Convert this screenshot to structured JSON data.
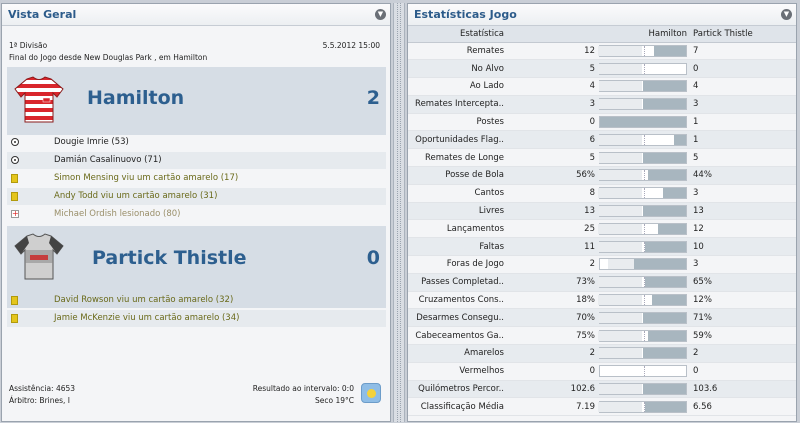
{
  "left_panel": {
    "title": "Vista Geral",
    "competition": "1ª Divisão",
    "date_time": "5.5.2012 15:00",
    "venue_line": "Final do Jogo desde New Douglas Park , em Hamilton",
    "home": {
      "name": "Hamilton",
      "score": "2",
      "kit_colors": [
        "#d9262c",
        "#ffffff"
      ]
    },
    "home_events": [
      {
        "icon": "goal-ball-icon",
        "kind": "goal",
        "text": "Dougie Imrie (53)"
      },
      {
        "icon": "goal-ball-icon",
        "kind": "goal",
        "text": "Damián Casalinuovo (71)"
      },
      {
        "icon": "yellow-card-icon",
        "kind": "card",
        "text": "Simon Mensing viu um cartão amarelo (17)"
      },
      {
        "icon": "yellow-card-icon",
        "kind": "card",
        "text": "Andy Todd viu um cartão amarelo (31)"
      },
      {
        "icon": "injury-cross-icon",
        "kind": "injury",
        "text": "Michael Ordish lesionado (80)"
      }
    ],
    "away": {
      "name": "Partick Thistle",
      "score": "0",
      "kit_colors": [
        "#c8c8c8",
        "#444444"
      ]
    },
    "away_events": [
      {
        "icon": "yellow-card-icon",
        "kind": "card",
        "text": "David Rowson viu um cartão amarelo (32)"
      },
      {
        "icon": "yellow-card-icon",
        "kind": "card",
        "text": "Jamie McKenzie viu um cartão amarelo (34)"
      }
    ],
    "attendance": "Assistência: 4653",
    "referee": "Árbitro: Brines, I",
    "halftime": "Resultado ao intervalo: 0:0",
    "weather": "Seco 19°C",
    "weather_icon": "sunny-weather-icon"
  },
  "right_panel": {
    "title": "Estatísticas Jogo",
    "col_stat": "Estatística",
    "col_home": "Hamilton",
    "col_away": "Partick Thistle",
    "rows": [
      {
        "label": "Remates",
        "home": "12",
        "away": "7",
        "hv": 12,
        "av": 7
      },
      {
        "label": "No Alvo",
        "home": "5",
        "away": "0",
        "hv": 5,
        "av": 0
      },
      {
        "label": "Ao Lado",
        "home": "4",
        "away": "4",
        "hv": 4,
        "av": 4
      },
      {
        "label": "Remates Intercepta..",
        "home": "3",
        "away": "3",
        "hv": 3,
        "av": 3
      },
      {
        "label": "Postes",
        "home": "0",
        "away": "1",
        "hv": 0,
        "av": 1
      },
      {
        "label": "Oportunidades Flag..",
        "home": "6",
        "away": "1",
        "hv": 6,
        "av": 1
      },
      {
        "label": "Remates de Longe",
        "home": "5",
        "away": "5",
        "hv": 5,
        "av": 5
      },
      {
        "label": "Posse de Bola",
        "home": "56%",
        "away": "44%",
        "hv": 56,
        "av": 44
      },
      {
        "label": "Cantos",
        "home": "8",
        "away": "3",
        "hv": 8,
        "av": 3
      },
      {
        "label": "Livres",
        "home": "13",
        "away": "13",
        "hv": 13,
        "av": 13
      },
      {
        "label": "Lançamentos",
        "home": "25",
        "away": "12",
        "hv": 25,
        "av": 12
      },
      {
        "label": "Faltas",
        "home": "11",
        "away": "10",
        "hv": 11,
        "av": 10
      },
      {
        "label": "Foras de Jogo",
        "home": "2",
        "away": "3",
        "hv": 2,
        "av": 3
      },
      {
        "label": "Passes Completad..",
        "home": "73%",
        "away": "65%",
        "hv": 73,
        "av": 65
      },
      {
        "label": "Cruzamentos Cons..",
        "home": "18%",
        "away": "12%",
        "hv": 18,
        "av": 12
      },
      {
        "label": "Desarmes Consegu..",
        "home": "70%",
        "away": "71%",
        "hv": 70,
        "av": 71
      },
      {
        "label": "Cabeceamentos Ga..",
        "home": "75%",
        "away": "59%",
        "hv": 75,
        "av": 59
      },
      {
        "label": "Amarelos",
        "home": "2",
        "away": "2",
        "hv": 2,
        "av": 2
      },
      {
        "label": "Vermelhos",
        "home": "0",
        "away": "0",
        "hv": 0,
        "av": 0
      },
      {
        "label": "Quilómetros Percor..",
        "home": "102.6",
        "away": "103.6",
        "hv": 102.6,
        "av": 103.6
      },
      {
        "label": "Classificação Média",
        "home": "7.19",
        "away": "6.56",
        "hv": 7.19,
        "av": 6.56
      }
    ],
    "bar_fill_color": "#a8b6bf"
  }
}
